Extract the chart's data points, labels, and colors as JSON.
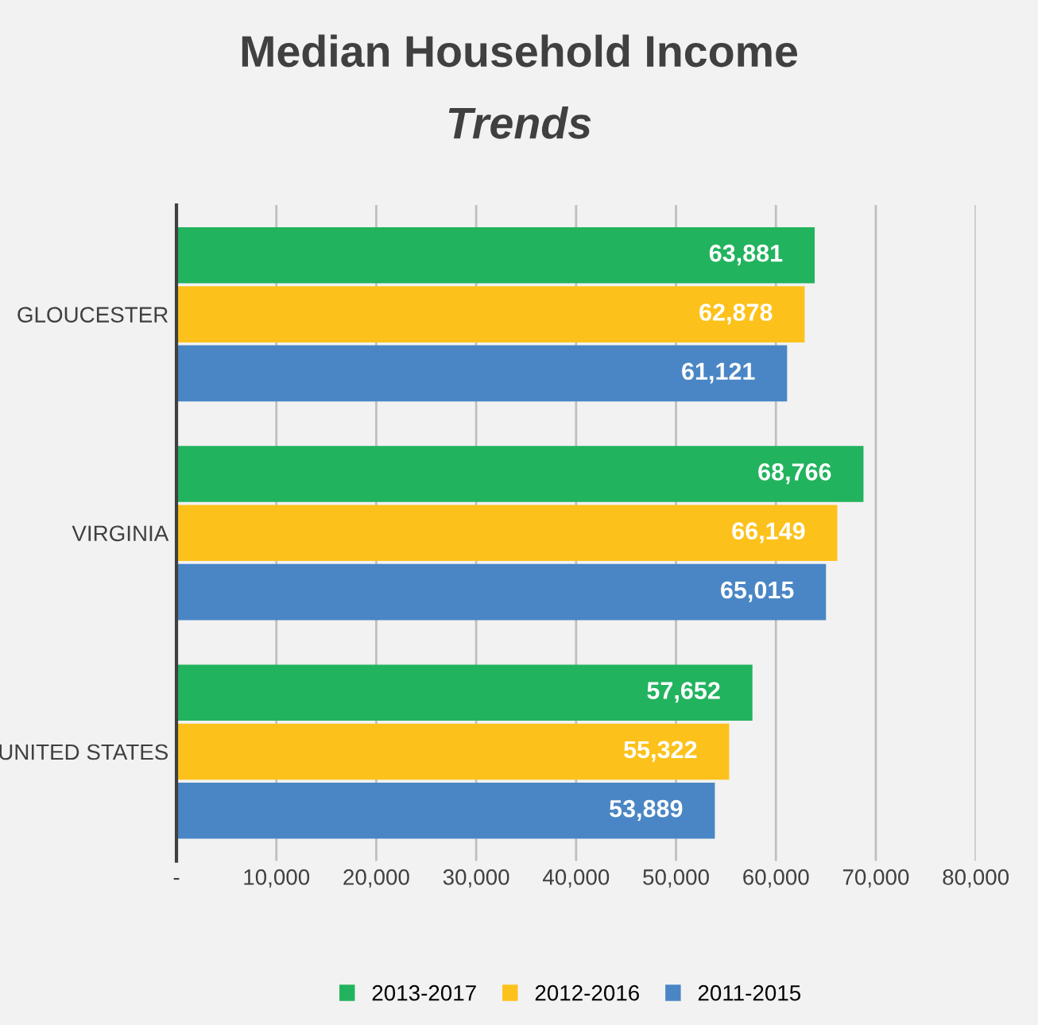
{
  "chart_data": {
    "type": "bar",
    "orientation": "horizontal",
    "title": "Median Household Income",
    "subtitle": "Trends",
    "categories": [
      "GLOUCESTER",
      "VIRGINIA",
      "UNITED STATES"
    ],
    "series": [
      {
        "name": "2013-2017",
        "color": "#22b35e",
        "values": [
          63881,
          68766,
          57652
        ],
        "value_labels": [
          "63,881",
          "68,766",
          "57,652"
        ]
      },
      {
        "name": "2012-2016",
        "color": "#fcc21b",
        "values": [
          62878,
          66149,
          55322
        ],
        "value_labels": [
          "62,878",
          "66,149",
          "55,322"
        ]
      },
      {
        "name": "2011-2015",
        "color": "#4a86c5",
        "values": [
          61121,
          65015,
          53889
        ],
        "value_labels": [
          "61,121",
          "65,015",
          "53,889"
        ]
      }
    ],
    "xlim": [
      0,
      80000
    ],
    "xticks": [
      {
        "value": 0,
        "label": "-"
      },
      {
        "value": 10000,
        "label": "10,000"
      },
      {
        "value": 20000,
        "label": "20,000"
      },
      {
        "value": 30000,
        "label": "30,000"
      },
      {
        "value": 40000,
        "label": "40,000"
      },
      {
        "value": 50000,
        "label": "50,000"
      },
      {
        "value": 60000,
        "label": "60,000"
      },
      {
        "value": 70000,
        "label": "70,000"
      },
      {
        "value": 80000,
        "label": "80,000"
      }
    ],
    "grid": "x",
    "legend": "bottom"
  }
}
